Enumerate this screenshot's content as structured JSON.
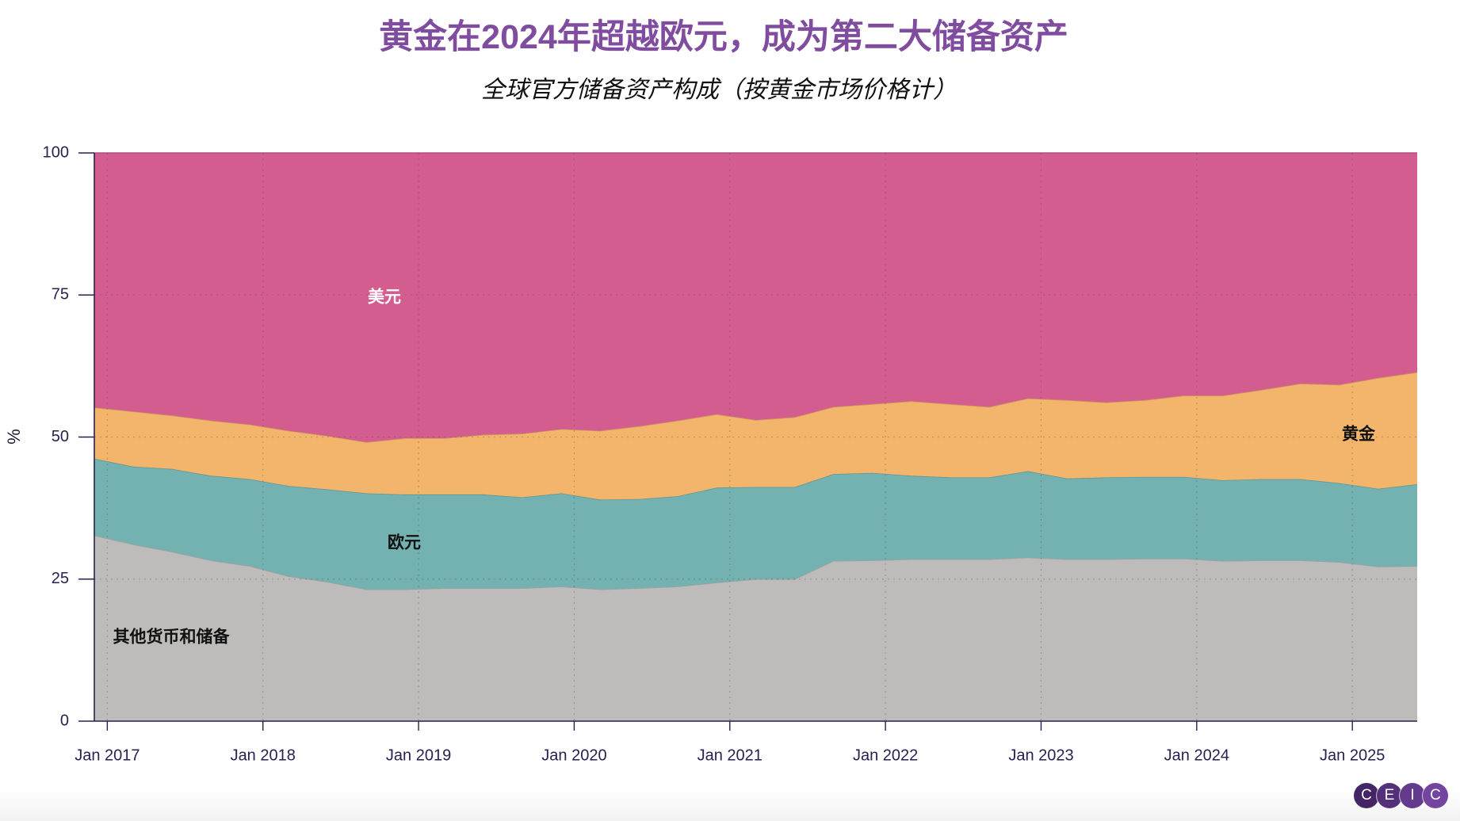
{
  "colors": {
    "title": "#804C9F",
    "axis": "#2A2050"
  },
  "logo": {
    "letters": [
      "C",
      "E",
      "I",
      "C"
    ],
    "colors": [
      "#432565",
      "#54307A",
      "#643A8D",
      "#7445A0"
    ]
  },
  "chart_data": {
    "type": "area",
    "stacked": true,
    "title": "黄金在2024年超越欧元，成为第二大储备资产",
    "subtitle": "全球官方储备资产构成（按黄金市场价格计）",
    "ylabel": "%",
    "ylim": [
      0,
      100
    ],
    "yticks": [
      0,
      25,
      50,
      75,
      100
    ],
    "xtick_labels": [
      "Jan 2017",
      "Jan 2018",
      "Jan 2019",
      "Jan 2020",
      "Jan 2021",
      "Jan 2022",
      "Jan 2023",
      "Jan 2024",
      "Jan 2025"
    ],
    "grid": true,
    "legend": "inline",
    "x": [
      "2016-12",
      "2017-03",
      "2017-06",
      "2017-09",
      "2017-12",
      "2018-03",
      "2018-06",
      "2018-09",
      "2018-12",
      "2019-03",
      "2019-06",
      "2019-09",
      "2019-12",
      "2020-03",
      "2020-06",
      "2020-09",
      "2020-12",
      "2021-03",
      "2021-06",
      "2021-09",
      "2021-12",
      "2022-03",
      "2022-06",
      "2022-09",
      "2022-12",
      "2023-03",
      "2023-06",
      "2023-09",
      "2023-12",
      "2024-03",
      "2024-06",
      "2024-09",
      "2024-12",
      "2025-03",
      "2025-06"
    ],
    "series": [
      {
        "name": "其他货币和储备",
        "color": "#BDBCBB",
        "values": [
          32.7,
          31.1,
          29.8,
          28.3,
          27.3,
          25.5,
          24.5,
          23.2,
          23.2,
          23.4,
          23.4,
          23.4,
          23.7,
          23.2,
          23.4,
          23.7,
          24.4,
          25.0,
          25.0,
          28.2,
          28.3,
          28.5,
          28.5,
          28.5,
          28.8,
          28.5,
          28.5,
          28.6,
          28.6,
          28.2,
          28.3,
          28.3,
          28.0,
          27.2,
          27.3
        ]
      },
      {
        "name": "欧元",
        "color": "#74B1B1",
        "values": [
          13.5,
          13.7,
          14.6,
          14.9,
          15.3,
          15.9,
          16.3,
          16.9,
          16.7,
          16.5,
          16.5,
          16.0,
          16.4,
          15.8,
          15.7,
          15.9,
          16.7,
          16.2,
          16.2,
          15.3,
          15.4,
          14.7,
          14.4,
          14.4,
          15.2,
          14.2,
          14.4,
          14.4,
          14.4,
          14.2,
          14.3,
          14.3,
          13.9,
          13.7,
          14.4
        ]
      },
      {
        "name": "黄金",
        "color": "#F2B56B",
        "values": [
          9.0,
          9.7,
          9.4,
          9.7,
          9.6,
          9.7,
          9.4,
          9.0,
          9.9,
          9.9,
          10.5,
          11.2,
          11.3,
          12.1,
          12.8,
          13.3,
          12.9,
          11.8,
          12.3,
          11.8,
          12.1,
          13.1,
          12.9,
          12.4,
          12.8,
          13.8,
          13.2,
          13.5,
          14.3,
          14.9,
          15.7,
          16.8,
          17.3,
          19.5,
          19.7
        ]
      },
      {
        "name": "美元",
        "color": "#D45D90",
        "values": [
          44.8,
          45.5,
          46.2,
          47.1,
          47.8,
          48.9,
          49.8,
          50.9,
          50.2,
          50.2,
          49.6,
          49.4,
          48.6,
          48.9,
          48.1,
          47.1,
          46.0,
          47.0,
          46.5,
          44.7,
          44.2,
          43.7,
          44.2,
          44.7,
          43.2,
          43.5,
          43.9,
          43.5,
          42.7,
          42.7,
          41.7,
          40.6,
          40.8,
          39.6,
          38.6
        ]
      }
    ]
  }
}
